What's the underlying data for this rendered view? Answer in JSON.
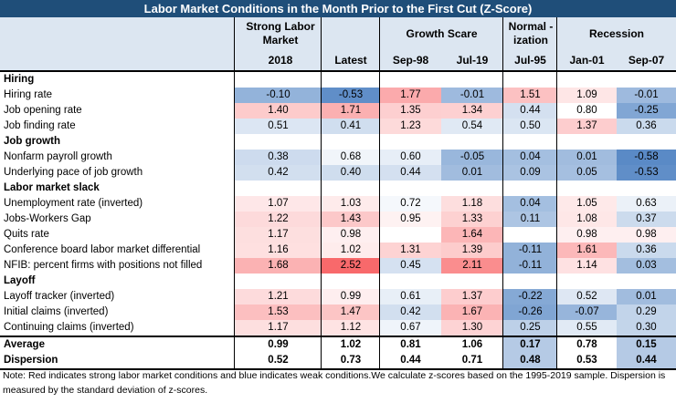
{
  "title": "Labor Market Conditions in the Month Prior to the First Cut (Z-Score)",
  "headers": {
    "group_strong": "Strong Labor Market",
    "group_growth": "Growth Scare",
    "group_normal": "Normal -ization",
    "group_recession": "Recession",
    "columns": [
      "2018",
      "Latest",
      "Sep-98",
      "Jul-19",
      "Jul-95",
      "Jan-01",
      "Sep-07"
    ]
  },
  "colors": {
    "strong_red": "#f8696b",
    "weak_blue": "#5a8ac6",
    "neutral": "#ffffff",
    "header_bg": "#dce6f1",
    "title_bg": "#1f4e79"
  },
  "rows": [
    {
      "type": "section",
      "label": "Hiring"
    },
    {
      "type": "data",
      "label": "Hiring rate",
      "values": [
        "-0.10",
        "-0.53",
        "1.77",
        "-0.01",
        "1.51",
        "1.09",
        "-0.01"
      ]
    },
    {
      "type": "data",
      "label": "Job opening rate",
      "values": [
        "1.40",
        "1.71",
        "1.35",
        "1.34",
        "0.44",
        "0.80",
        "-0.25"
      ]
    },
    {
      "type": "data",
      "label": "Job finding rate",
      "values": [
        "0.51",
        "0.41",
        "1.23",
        "0.54",
        "0.50",
        "1.37",
        "0.36"
      ]
    },
    {
      "type": "section",
      "label": "Job growth"
    },
    {
      "type": "data",
      "label": "Nonfarm payroll growth",
      "values": [
        "0.38",
        "0.68",
        "0.60",
        "-0.05",
        "0.04",
        "0.01",
        "-0.58"
      ]
    },
    {
      "type": "data",
      "label": "Underlying pace of job growth",
      "values": [
        "0.42",
        "0.40",
        "0.44",
        "0.01",
        "0.09",
        "0.05",
        "-0.53"
      ]
    },
    {
      "type": "section",
      "label": "Labor market slack"
    },
    {
      "type": "data",
      "label": "Unemployment rate (inverted)",
      "values": [
        "1.07",
        "1.03",
        "0.72",
        "1.18",
        "0.04",
        "1.05",
        "0.63"
      ]
    },
    {
      "type": "data",
      "label": "Jobs-Workers Gap",
      "values": [
        "1.22",
        "1.43",
        "0.95",
        "1.33",
        "0.11",
        "1.08",
        "0.37"
      ]
    },
    {
      "type": "data",
      "label": "Quits rate",
      "values": [
        "1.17",
        "0.98",
        "",
        "1.64",
        "",
        "0.98",
        "0.98"
      ]
    },
    {
      "type": "data",
      "label": "Conference board labor market differential",
      "values": [
        "1.16",
        "1.02",
        "1.31",
        "1.39",
        "-0.11",
        "1.61",
        "0.36"
      ]
    },
    {
      "type": "data",
      "label": "NFIB: percent firms with positions not filled",
      "values": [
        "1.68",
        "2.52",
        "0.45",
        "2.11",
        "-0.11",
        "1.14",
        "0.03"
      ]
    },
    {
      "type": "section",
      "label": "Layoff"
    },
    {
      "type": "data",
      "label": "Layoff tracker (inverted)",
      "values": [
        "1.21",
        "0.99",
        "0.61",
        "1.37",
        "-0.22",
        "0.52",
        "0.01"
      ]
    },
    {
      "type": "data",
      "label": "Initial claims (inverted)",
      "values": [
        "1.53",
        "1.47",
        "0.42",
        "1.67",
        "-0.26",
        "-0.07",
        "0.29"
      ]
    },
    {
      "type": "data",
      "label": "Continuing claims (inverted)",
      "values": [
        "1.17",
        "1.12",
        "0.67",
        "1.30",
        "0.25",
        "0.55",
        "0.30"
      ]
    },
    {
      "type": "summary",
      "label": "Average",
      "values": [
        "0.99",
        "1.02",
        "0.81",
        "1.06",
        "0.17",
        "0.78",
        "0.15"
      ]
    },
    {
      "type": "summary",
      "label": "Dispersion",
      "values": [
        "0.52",
        "0.73",
        "0.44",
        "0.71",
        "0.48",
        "0.53",
        "0.44"
      ]
    }
  ],
  "note": "Note: Red indicates strong labor market conditions and blue indicates weak conditions.We calculate z-scores based on the 1995-2019 sample. Dispersion is measured by the standard deviation of z-scores."
}
